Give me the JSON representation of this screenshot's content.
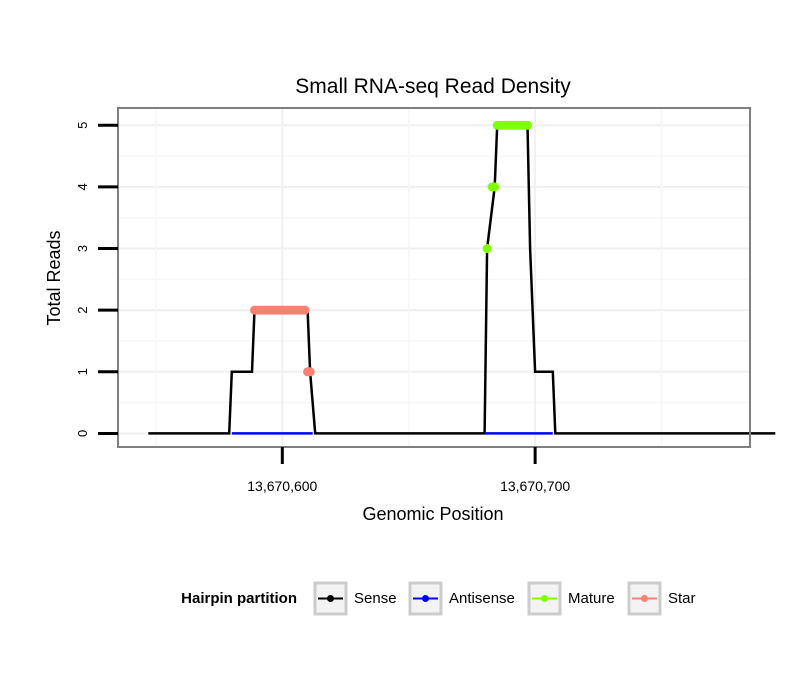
{
  "chart_data": {
    "type": "line",
    "title": "Small RNA-seq Read Density",
    "xlabel": "Genomic Position",
    "ylabel": "Total Reads",
    "xlim": [
      13670535,
      13670785
    ],
    "ylim": [
      -0.22,
      5.28
    ],
    "grid": true,
    "x_ticks": [
      13670600,
      13670700
    ],
    "x_tick_labels": [
      "13,670,600",
      "13,670,700"
    ],
    "y_ticks": [
      0,
      1,
      2,
      3,
      4,
      5
    ],
    "y_tick_labels": [
      "0",
      "1",
      "2",
      "3",
      "4",
      "5"
    ],
    "legend": {
      "title": "Hairpin partition",
      "position": "bottom",
      "entries": [
        {
          "name": "Sense",
          "color": "#000000"
        },
        {
          "name": "Antisense",
          "color": "#0000ff"
        },
        {
          "name": "Mature",
          "color": "#7fff00"
        },
        {
          "name": "Star",
          "color": "#fa8072"
        }
      ]
    },
    "series": [
      {
        "name": "Sense",
        "color": "#000000",
        "style": "line",
        "x": [
          13670547,
          13670579,
          13670580,
          13670588,
          13670589,
          13670610,
          13670611,
          13670613,
          13670797,
          13670680,
          13670681,
          13670684,
          13670685,
          13670697,
          13670698,
          13670700,
          13670707,
          13670708,
          13670790
        ],
        "y": [
          0,
          0,
          1,
          1,
          2,
          2,
          1,
          0,
          0,
          0,
          3,
          4,
          5,
          5,
          3,
          1,
          1,
          0,
          0
        ]
      },
      {
        "name": "Sense",
        "color": "#000000",
        "style": "line",
        "x": [
          13670547,
          13670579,
          13670580,
          13670588,
          13670589,
          13670610,
          13670611,
          13670613,
          13670680,
          13670681,
          13670684,
          13670685,
          13670697,
          13670698,
          13670700,
          13670707,
          13670708,
          13670795
        ],
        "y": [
          0,
          0,
          1,
          1,
          2,
          2,
          1,
          0,
          0,
          3,
          4,
          5,
          5,
          3,
          1,
          1,
          0,
          0
        ]
      },
      {
        "name": "Antisense",
        "color": "#0000ff",
        "style": "line",
        "x": [
          13670580,
          13670612,
          13670680,
          13670707
        ],
        "y": [
          0,
          0,
          0,
          0
        ],
        "breaks_after": [
          1
        ]
      },
      {
        "name": "Mature",
        "color": "#7fff00",
        "style": "points",
        "x": [
          13670681,
          13670683,
          13670684,
          13670685,
          13670686,
          13670687,
          13670688,
          13670689,
          13670690,
          13670691,
          13670692,
          13670693,
          13670694,
          13670695,
          13670696,
          13670697
        ],
        "y": [
          3,
          4,
          4,
          5,
          5,
          5,
          5,
          5,
          5,
          5,
          5,
          5,
          5,
          5,
          5,
          5
        ]
      },
      {
        "name": "Star",
        "color": "#fa8072",
        "style": "points",
        "x": [
          13670589,
          13670590,
          13670591,
          13670592,
          13670593,
          13670594,
          13670595,
          13670596,
          13670597,
          13670598,
          13670599,
          13670600,
          13670601,
          13670602,
          13670603,
          13670604,
          13670605,
          13670606,
          13670607,
          13670608,
          13670609,
          13670610,
          13670611
        ],
        "y": [
          2,
          2,
          2,
          2,
          2,
          2,
          2,
          2,
          2,
          2,
          2,
          2,
          2,
          2,
          2,
          2,
          2,
          2,
          2,
          2,
          2,
          1,
          1
        ]
      }
    ]
  }
}
